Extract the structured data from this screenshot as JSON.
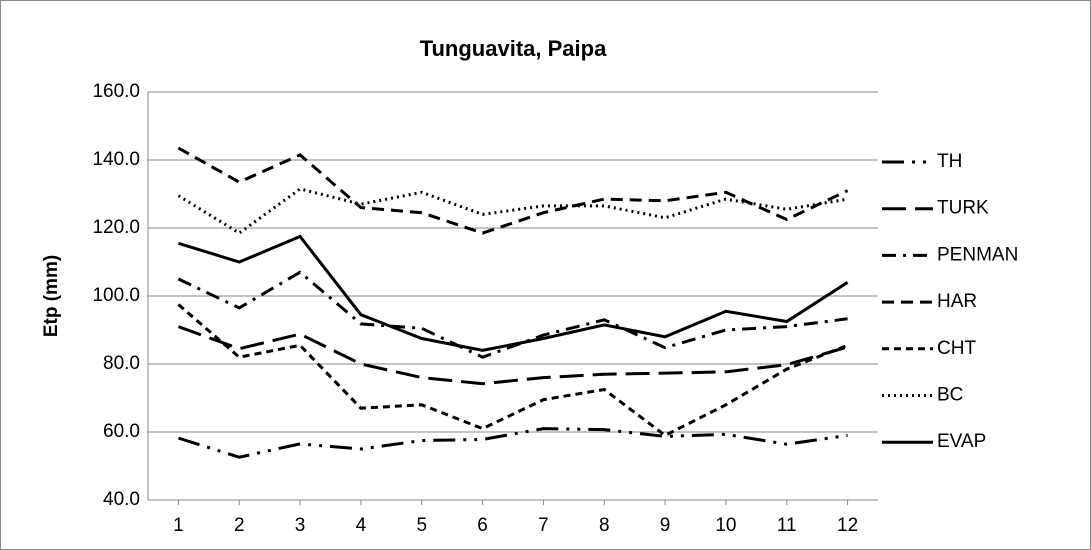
{
  "chart_data": {
    "type": "line",
    "title": "Tunguavita, Paipa",
    "y_label": "Etp (mm)",
    "x": [
      1,
      2,
      3,
      4,
      5,
      6,
      7,
      8,
      9,
      10,
      11,
      12
    ],
    "xticks": [
      1,
      2,
      3,
      4,
      5,
      6,
      7,
      8,
      9,
      10,
      11,
      12
    ],
    "xlim": [
      0.5,
      12.5
    ],
    "ylim": [
      40,
      160
    ],
    "yticks": [
      {
        "value": 40,
        "label": "40.0"
      },
      {
        "value": 60,
        "label": "60.0"
      },
      {
        "value": 80,
        "label": "80.0"
      },
      {
        "value": 100,
        "label": "100.0"
      },
      {
        "value": 120,
        "label": "120.0"
      },
      {
        "value": 140,
        "label": "140.0"
      },
      {
        "value": 160,
        "label": "160.0"
      }
    ],
    "grid": true,
    "legend": "right",
    "series": [
      {
        "name": "TH",
        "color": "#000000",
        "values": [
          58.2,
          52.6,
          56.5,
          55,
          57.5,
          57.8,
          61,
          60.7,
          58.7,
          59.3,
          56.4,
          59
        ]
      },
      {
        "name": "TURK",
        "color": "#000000",
        "values": [
          91,
          84.5,
          88.8,
          80,
          76,
          74.2,
          76,
          77,
          77.3,
          77.7,
          79.8,
          85
        ]
      },
      {
        "name": "PENMAN",
        "color": "#000000",
        "values": [
          105,
          96.5,
          107,
          91.8,
          90.5,
          82,
          88.5,
          93,
          84.8,
          90,
          91,
          93.3
        ]
      },
      {
        "name": "HAR",
        "color": "#000000",
        "values": [
          143.5,
          133.5,
          141.5,
          126,
          124.5,
          118.5,
          124.5,
          128.5,
          128,
          130.5,
          122.5,
          131
        ]
      },
      {
        "name": "CHT",
        "color": "#000000",
        "values": [
          97.5,
          82,
          85.5,
          67,
          68,
          61,
          69.5,
          72.5,
          59,
          68,
          78.5,
          85.5
        ]
      },
      {
        "name": "BC",
        "color": "#000000",
        "values": [
          129.5,
          118.5,
          131.5,
          127,
          130.5,
          124,
          126.5,
          126.5,
          123,
          128.5,
          125.5,
          128.5
        ]
      },
      {
        "name": "EVAP",
        "color": "#000000",
        "values": [
          115.5,
          110,
          117.5,
          94.5,
          87.5,
          84,
          87.5,
          91.5,
          88,
          95.5,
          92.5,
          104
        ]
      }
    ]
  }
}
